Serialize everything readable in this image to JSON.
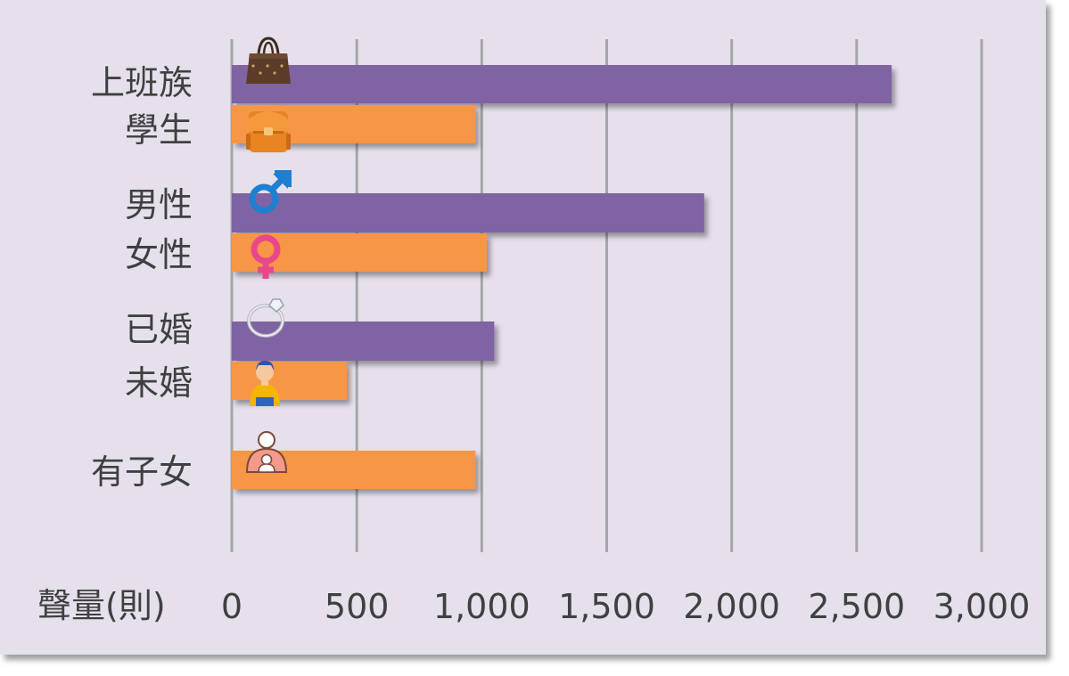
{
  "chart_data": {
    "type": "bar",
    "orientation": "horizontal",
    "xlabel": "聲量(則)",
    "xlim": [
      0,
      3000
    ],
    "xticks": [
      0,
      500,
      1000,
      1500,
      2000,
      2500,
      3000
    ],
    "xtick_labels": [
      "0",
      "500",
      "1,000",
      "1,500",
      "2,000",
      "2,500",
      "3,000"
    ],
    "grid": "vertical",
    "colors": {
      "purple": "#8064a2",
      "orange": "#f79646",
      "background": "#e6e0ec",
      "grid": "#a6a6a6"
    },
    "bars": [
      {
        "label": "上班族",
        "value": 2640,
        "color": "purple",
        "icon": "handbag-icon"
      },
      {
        "label": "學生",
        "value": 975,
        "color": "orange",
        "icon": "school-backpack-icon"
      },
      {
        "label": "男性",
        "value": 1890,
        "color": "purple",
        "icon": "male-symbol-icon"
      },
      {
        "label": "女性",
        "value": 1020,
        "color": "orange",
        "icon": "female-symbol-icon"
      },
      {
        "label": "已婚",
        "value": 1050,
        "color": "purple",
        "icon": "ring-icon"
      },
      {
        "label": "未婚",
        "value": 460,
        "color": "orange",
        "icon": "single-person-icon"
      },
      {
        "label": "有子女",
        "value": 975,
        "color": "orange",
        "icon": "parent-child-icon"
      }
    ]
  }
}
